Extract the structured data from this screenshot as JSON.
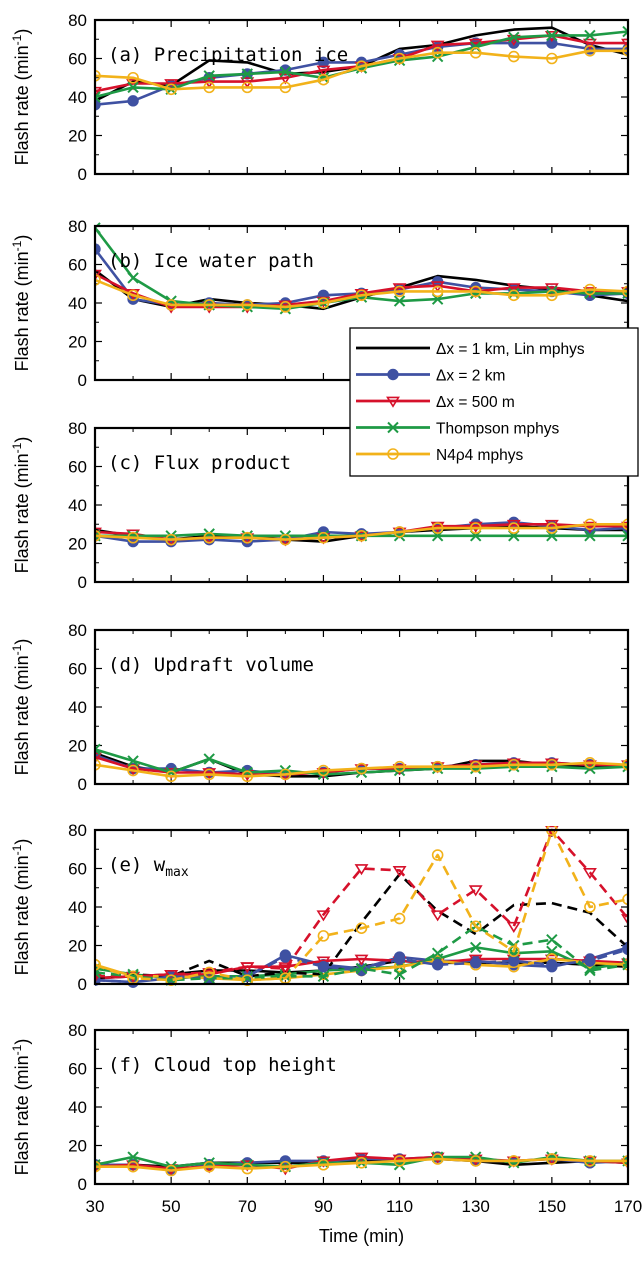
{
  "chart_data": {
    "type": "line",
    "xlabel": "Time (min)",
    "ylabel": "Flash rate (min",
    "ylabel_sup": "-1",
    "ylabel_close": ")",
    "xlim": [
      30,
      170
    ],
    "ylim": [
      0,
      80
    ],
    "x_ticks": [
      30,
      50,
      70,
      90,
      110,
      130,
      150,
      170
    ],
    "y_ticks": [
      0,
      20,
      40,
      60,
      80
    ],
    "x": [
      30,
      40,
      50,
      60,
      70,
      80,
      90,
      100,
      110,
      120,
      130,
      140,
      150,
      160,
      170
    ],
    "series_styles": [
      {
        "key": "lin1km",
        "color": "#000000",
        "marker": "none"
      },
      {
        "key": "dx2km",
        "color": "#3f51a2",
        "marker": "circle-filled"
      },
      {
        "key": "dx500m",
        "color": "#d6112b",
        "marker": "triangle-down-open"
      },
      {
        "key": "thompson",
        "color": "#1e9a45",
        "marker": "x"
      },
      {
        "key": "n4p4",
        "color": "#f2b21a",
        "marker": "circle-open"
      }
    ],
    "legend": {
      "placement": "panel-b right",
      "entries": [
        {
          "key": "lin1km",
          "label": "Δx = 1 km, Lin mphys"
        },
        {
          "key": "dx2km",
          "label": "Δx = 2 km"
        },
        {
          "key": "dx500m",
          "label": "Δx = 500 m"
        },
        {
          "key": "thompson",
          "label": "Thompson mphys"
        },
        {
          "key": "n4p4",
          "label": "N4ρ4 mphys"
        }
      ]
    },
    "panels": [
      {
        "title": "(a) Precipitation ice",
        "series": [
          {
            "key": "lin1km",
            "values": [
              38,
              48,
              46,
              59,
              58,
              52,
              53,
              56,
              65,
              67,
              72,
              75,
              76,
              67,
              62
            ]
          },
          {
            "key": "dx2km",
            "values": [
              36,
              38,
              46,
              50,
              52,
              54,
              58,
              58,
              62,
              66,
              68,
              68,
              68,
              65,
              65
            ]
          },
          {
            "key": "dx500m",
            "values": [
              43,
              47,
              47,
              48,
              48,
              50,
              54,
              56,
              60,
              67,
              68,
              70,
              72,
              68,
              68
            ]
          },
          {
            "key": "thompson",
            "values": [
              40,
              45,
              44,
              51,
              52,
              53,
              50,
              55,
              59,
              61,
              66,
              71,
              72,
              72,
              74
            ]
          },
          {
            "key": "n4p4",
            "values": [
              51,
              50,
              44,
              45,
              45,
              45,
              49,
              56,
              60,
              63,
              63,
              61,
              60,
              64,
              64
            ]
          }
        ]
      },
      {
        "title": "(b) Ice water path",
        "series": [
          {
            "key": "lin1km",
            "values": [
              57,
              42,
              38,
              42,
              40,
              39,
              37,
              43,
              48,
              54,
              52,
              49,
              47,
              44,
              41
            ]
          },
          {
            "key": "dx2km",
            "values": [
              68,
              42,
              39,
              40,
              39,
              40,
              44,
              45,
              47,
              51,
              48,
              47,
              46,
              44,
              45
            ]
          },
          {
            "key": "dx500m",
            "values": [
              55,
              45,
              38,
              38,
              38,
              39,
              41,
              45,
              48,
              49,
              46,
              48,
              48,
              46,
              46
            ]
          },
          {
            "key": "thompson",
            "values": [
              79,
              53,
              41,
              39,
              38,
              37,
              40,
              43,
              41,
              42,
              45,
              45,
              46,
              45,
              45
            ]
          },
          {
            "key": "n4p4",
            "values": [
              52,
              44,
              39,
              39,
              39,
              38,
              40,
              44,
              46,
              46,
              46,
              44,
              44,
              47,
              46
            ]
          }
        ]
      },
      {
        "title": "(c) Flux product",
        "series": [
          {
            "key": "lin1km",
            "values": [
              27,
              24,
              22,
              24,
              24,
              22,
              21,
              24,
              26,
              27,
              28,
              29,
              28,
              27,
              27
            ]
          },
          {
            "key": "dx2km",
            "values": [
              24,
              21,
              21,
              22,
              21,
              22,
              26,
              25,
              26,
              28,
              30,
              31,
              29,
              27,
              28
            ]
          },
          {
            "key": "dx500m",
            "values": [
              26,
              25,
              22,
              23,
              23,
              22,
              23,
              24,
              26,
              29,
              29,
              30,
              30,
              29,
              29
            ]
          },
          {
            "key": "thompson",
            "values": [
              24,
              24,
              24,
              25,
              24,
              24,
              24,
              24,
              24,
              24,
              24,
              24,
              24,
              24,
              24
            ]
          },
          {
            "key": "n4p4",
            "values": [
              24,
              23,
              22,
              23,
              23,
              22,
              23,
              24,
              26,
              28,
              28,
              28,
              28,
              30,
              30
            ]
          }
        ]
      },
      {
        "title": "(d) Updraft volume",
        "series": [
          {
            "key": "lin1km",
            "values": [
              16,
              9,
              6,
              13,
              5,
              4,
              4,
              6,
              7,
              8,
              12,
              12,
              10,
              9,
              10
            ]
          },
          {
            "key": "dx2km",
            "values": [
              15,
              8,
              8,
              6,
              7,
              5,
              6,
              8,
              8,
              9,
              10,
              11,
              11,
              10,
              10
            ]
          },
          {
            "key": "dx500m",
            "values": [
              14,
              8,
              6,
              6,
              5,
              5,
              6,
              8,
              8,
              9,
              10,
              11,
              11,
              10,
              10
            ]
          },
          {
            "key": "thompson",
            "values": [
              18,
              12,
              6,
              13,
              6,
              7,
              5,
              6,
              7,
              8,
              8,
              9,
              9,
              8,
              9
            ]
          },
          {
            "key": "n4p4",
            "values": [
              10,
              7,
              4,
              5,
              4,
              5,
              7,
              8,
              9,
              9,
              9,
              10,
              10,
              11,
              10
            ]
          }
        ]
      },
      {
        "title": "(e) w",
        "title_sub": "max",
        "series": [
          {
            "key": "lin1km",
            "values": [
              3,
              4,
              5,
              7,
              7,
              6,
              7,
              9,
              12,
              11,
              11,
              11,
              11,
              10,
              9
            ]
          },
          {
            "key": "dx2km",
            "values": [
              2,
              1,
              3,
              4,
              4,
              15,
              10,
              8,
              14,
              12,
              12,
              10,
              9,
              13,
              19
            ]
          },
          {
            "key": "dx500m",
            "values": [
              3,
              4,
              5,
              5,
              9,
              9,
              12,
              13,
              12,
              11,
              13,
              13,
              13,
              12,
              11
            ]
          },
          {
            "key": "thompson",
            "values": [
              8,
              5,
              3,
              4,
              4,
              5,
              7,
              8,
              9,
              13,
              19,
              16,
              17,
              8,
              11
            ]
          },
          {
            "key": "n4p4",
            "values": [
              10,
              4,
              4,
              3,
              2,
              3,
              5,
              7,
              9,
              12,
              10,
              9,
              13,
              11,
              10
            ]
          },
          {
            "key": "lin1km",
            "dashed": true,
            "values": [
              3,
              5,
              4,
              12,
              4,
              6,
              5,
              32,
              57,
              38,
              26,
              41,
              42,
              37,
              19
            ]
          },
          {
            "key": "dx2km",
            "dashed": true,
            "values": [
              2,
              1,
              4,
              3,
              4,
              14,
              9,
              7,
              13,
              10,
              11,
              12,
              10,
              12,
              18
            ]
          },
          {
            "key": "dx500m",
            "dashed": true,
            "values": [
              4,
              4,
              5,
              6,
              9,
              8,
              36,
              60,
              59,
              36,
              49,
              30,
              80,
              58,
              34
            ]
          },
          {
            "key": "thompson",
            "dashed": true,
            "values": [
              6,
              4,
              2,
              3,
              3,
              4,
              4,
              8,
              5,
              16,
              30,
              20,
              23,
              7,
              10
            ]
          },
          {
            "key": "n4p4",
            "dashed": true,
            "values": [
              10,
              3,
              2,
              6,
              2,
              3,
              25,
              29,
              34,
              67,
              30,
              17,
              81,
              40,
              44
            ]
          }
        ]
      },
      {
        "title": "(f) Cloud top height",
        "series": [
          {
            "key": "lin1km",
            "values": [
              10,
              10,
              9,
              11,
              11,
              11,
              11,
              12,
              13,
              13,
              12,
              10,
              11,
              12,
              11
            ]
          },
          {
            "key": "dx2km",
            "values": [
              10,
              10,
              7,
              10,
              11,
              12,
              12,
              13,
              13,
              14,
              12,
              12,
              13,
              11,
              12
            ]
          },
          {
            "key": "dx500m",
            "values": [
              9,
              10,
              8,
              9,
              10,
              8,
              12,
              14,
              13,
              14,
              13,
              12,
              13,
              12,
              11
            ]
          },
          {
            "key": "thompson",
            "values": [
              10,
              14,
              9,
              11,
              10,
              9,
              11,
              11,
              10,
              14,
              14,
              11,
              14,
              12,
              12
            ]
          },
          {
            "key": "n4p4",
            "values": [
              9,
              9,
              7,
              9,
              8,
              9,
              10,
              11,
              12,
              13,
              12,
              12,
              13,
              12,
              12
            ]
          }
        ]
      }
    ]
  }
}
